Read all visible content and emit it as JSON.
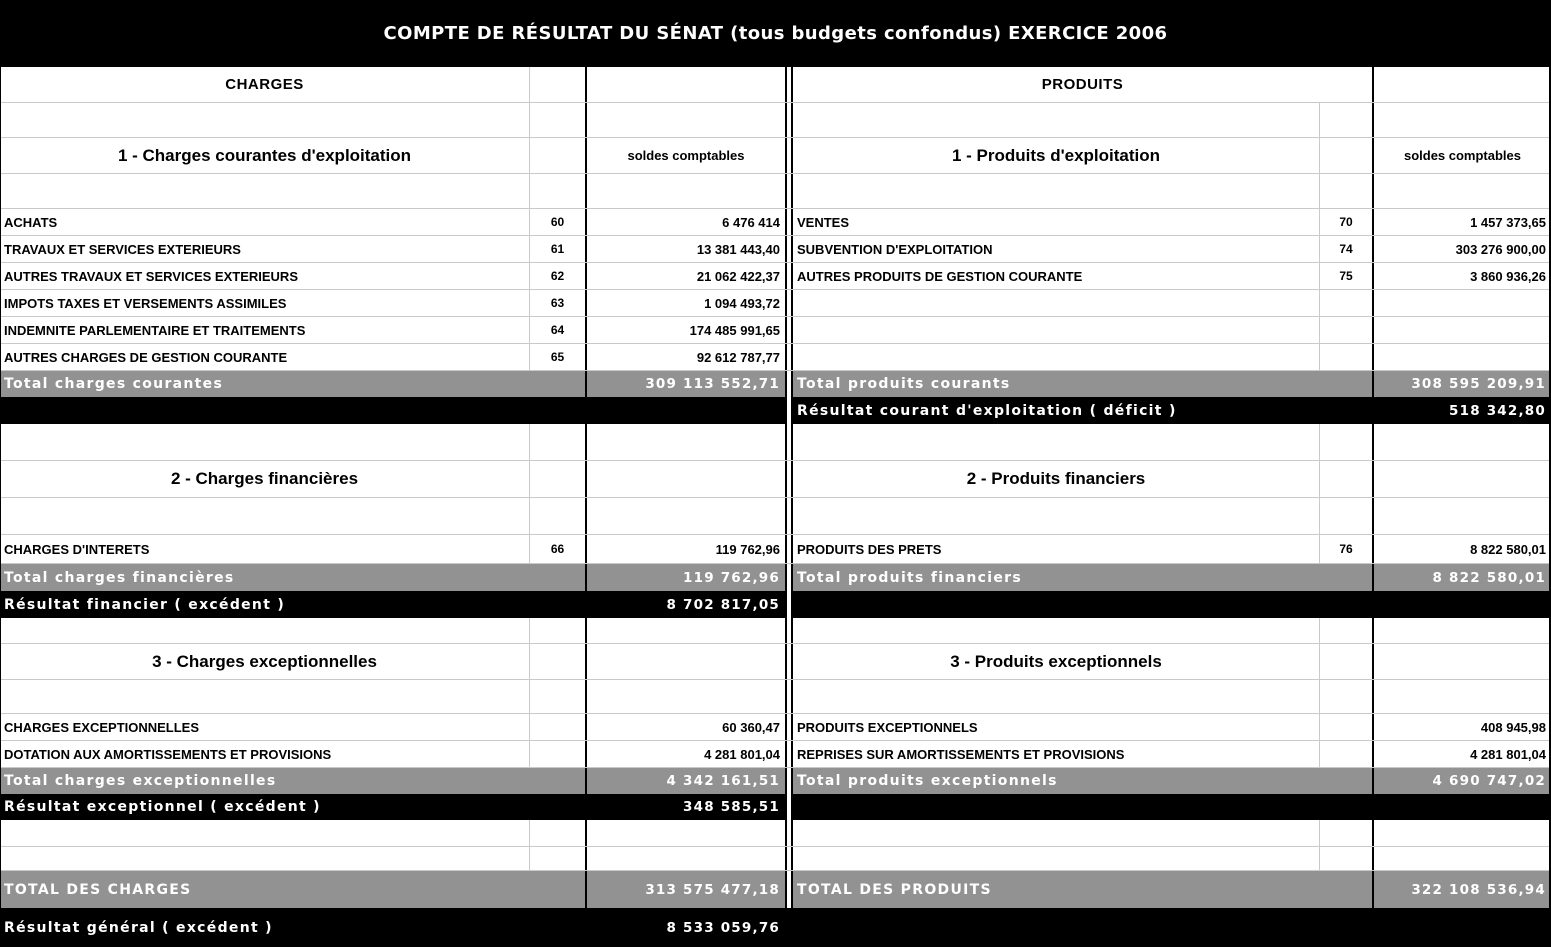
{
  "title": "COMPTE DE RÉSULTAT DU SÉNAT (tous budgets confondus) EXERCICE 2006",
  "colors": {
    "total_row_bg": "#929292",
    "result_row_bg": "#000000",
    "grid_line": "#c9c9c9",
    "table_bg": "#ffffff"
  },
  "charges": {
    "header": "CHARGES",
    "sections": [
      {
        "title": "1 - Charges courantes d'exploitation",
        "col_header": "soldes comptables",
        "rows": [
          {
            "label": "ACHATS",
            "code": "60",
            "amount": "6 476 414"
          },
          {
            "label": "TRAVAUX ET SERVICES EXTERIEURS",
            "code": "61",
            "amount": "13 381 443,40"
          },
          {
            "label": "AUTRES TRAVAUX ET SERVICES EXTERIEURS",
            "code": "62",
            "amount": "21 062 422,37"
          },
          {
            "label": "IMPOTS TAXES ET VERSEMENTS ASSIMILES",
            "code": "63",
            "amount": "1 094 493,72"
          },
          {
            "label": "INDEMNITE PARLEMENTAIRE ET TRAITEMENTS",
            "code": "64",
            "amount": "174 485 991,65"
          },
          {
            "label": "AUTRES CHARGES DE GESTION COURANTE",
            "code": "65",
            "amount": "92 612 787,77"
          }
        ],
        "total": {
          "label": "Total charges courantes",
          "amount": "309 113 552,71"
        }
      },
      {
        "title": "2 - Charges financières",
        "rows": [
          {
            "label": "CHARGES D'INTERETS",
            "code": "66",
            "amount": "119 762,96"
          }
        ],
        "total": {
          "label": "Total charges financières",
          "amount": "119 762,96"
        },
        "result": {
          "label": "Résultat financier ( excédent )",
          "amount": "8 702 817,05"
        }
      },
      {
        "title": "3 - Charges exceptionnelles",
        "rows": [
          {
            "label": "CHARGES EXCEPTIONNELLES",
            "code": "",
            "amount": "60 360,47"
          },
          {
            "label": "DOTATION AUX AMORTISSEMENTS ET PROVISIONS",
            "code": "",
            "amount": "4 281 801,04"
          }
        ],
        "total": {
          "label": "Total charges exceptionnelles",
          "amount": "4 342 161,51"
        },
        "result": {
          "label": "Résultat exceptionnel ( excédent )",
          "amount": "348 585,51"
        }
      }
    ],
    "grand_total": {
      "label": "TOTAL DES CHARGES",
      "amount": "313 575 477,18"
    },
    "general_result": {
      "label": "Résultat général ( excédent )",
      "amount": "8 533 059,76"
    }
  },
  "produits": {
    "header": "PRODUITS",
    "sections": [
      {
        "title": "1 - Produits d'exploitation",
        "col_header": "soldes comptables",
        "rows": [
          {
            "label": "VENTES",
            "code": "70",
            "amount": "1 457 373,65"
          },
          {
            "label": "SUBVENTION D'EXPLOITATION",
            "code": "74",
            "amount": "303 276 900,00"
          },
          {
            "label": "AUTRES PRODUITS DE GESTION COURANTE",
            "code": "75",
            "amount": "3 860 936,26"
          }
        ],
        "total": {
          "label": "Total produits courants",
          "amount": "308 595 209,91"
        },
        "result": {
          "label": "Résultat courant d'exploitation ( déficit )",
          "amount": "518 342,80"
        }
      },
      {
        "title": "2 - Produits financiers",
        "rows": [
          {
            "label": "PRODUITS DES PRETS",
            "code": "76",
            "amount": "8 822 580,01"
          }
        ],
        "total": {
          "label": "Total produits financiers",
          "amount": "8 822 580,01"
        }
      },
      {
        "title": "3 - Produits exceptionnels",
        "rows": [
          {
            "label": "PRODUITS EXCEPTIONNELS",
            "code": "",
            "amount": "408 945,98"
          },
          {
            "label": "REPRISES SUR AMORTISSEMENTS ET PROVISIONS",
            "code": "",
            "amount": "4 281 801,04"
          }
        ],
        "total": {
          "label": "Total produits exceptionnels",
          "amount": "4 690 747,02"
        }
      }
    ],
    "grand_total": {
      "label": "TOTAL DES PRODUITS",
      "amount": "322 108 536,94"
    }
  }
}
